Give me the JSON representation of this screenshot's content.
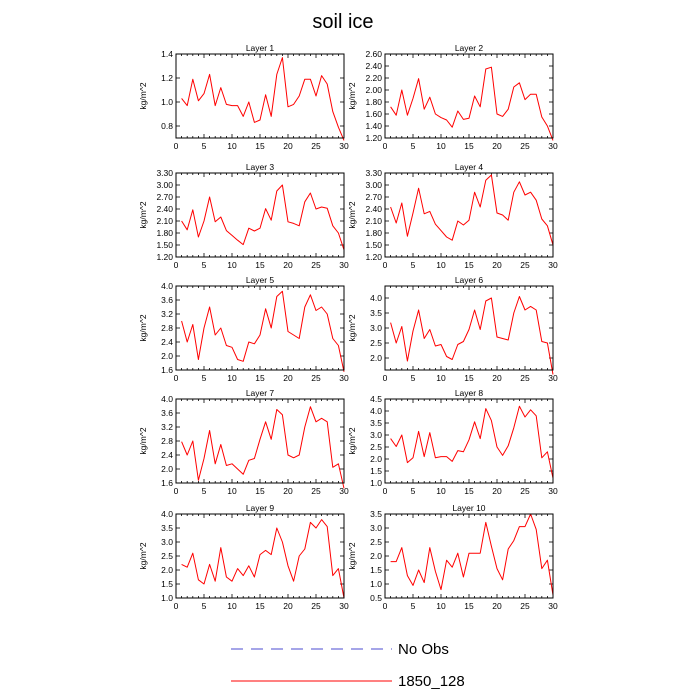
{
  "figure": {
    "title": "soil ice",
    "legend": [
      {
        "label": "No Obs",
        "color": "#4b4bd0",
        "style": "dashed"
      },
      {
        "label": "1850_128",
        "color": "#ff0000",
        "style": "solid"
      }
    ]
  },
  "chart_data": [
    {
      "type": "line",
      "title": "Layer 1",
      "ylabel": "kg/m^2",
      "xlim": [
        0,
        30
      ],
      "ylim": [
        0.7,
        1.4
      ],
      "xticks": [
        0,
        5,
        10,
        15,
        20,
        25,
        30
      ],
      "yticks": [
        0.8,
        1.0,
        1.2,
        1.4
      ],
      "ytick_labels": [
        "0.8",
        "1.0",
        "1.2",
        "1.4"
      ],
      "series": [
        {
          "color": "#ff0000",
          "x": [
            1,
            2,
            3,
            4,
            5,
            6,
            7,
            8,
            9,
            10,
            11,
            12,
            13,
            14,
            15,
            16,
            17,
            18,
            19,
            20,
            21,
            22,
            23,
            24,
            25,
            26,
            27,
            28,
            29,
            30
          ],
          "y": [
            1.03,
            0.97,
            1.19,
            1.01,
            1.07,
            1.23,
            0.97,
            1.12,
            0.98,
            0.97,
            0.97,
            0.88,
            1.0,
            0.83,
            0.85,
            1.06,
            0.88,
            1.23,
            1.37,
            0.96,
            0.98,
            1.05,
            1.19,
            1.19,
            1.05,
            1.22,
            1.15,
            0.92,
            0.79,
            0.68
          ]
        }
      ]
    },
    {
      "type": "line",
      "title": "Layer 2",
      "ylabel": "kg/m^2",
      "xlim": [
        0,
        30
      ],
      "ylim": [
        1.2,
        2.6
      ],
      "xticks": [
        0,
        5,
        10,
        15,
        20,
        25,
        30
      ],
      "yticks": [
        1.2,
        1.4,
        1.6,
        1.8,
        2.0,
        2.2,
        2.4,
        2.6
      ],
      "ytick_labels": [
        "1.20",
        "1.40",
        "1.60",
        "1.80",
        "2.00",
        "2.20",
        "2.40",
        "2.60"
      ],
      "series": [
        {
          "color": "#ff0000",
          "x": [
            1,
            2,
            3,
            4,
            5,
            6,
            7,
            8,
            9,
            10,
            11,
            12,
            13,
            14,
            15,
            16,
            17,
            18,
            19,
            20,
            21,
            22,
            23,
            24,
            25,
            26,
            27,
            28,
            29,
            30
          ],
          "y": [
            1.72,
            1.58,
            2.0,
            1.58,
            1.86,
            2.19,
            1.68,
            1.88,
            1.6,
            1.54,
            1.5,
            1.38,
            1.65,
            1.51,
            1.53,
            1.9,
            1.72,
            2.35,
            2.38,
            1.6,
            1.56,
            1.68,
            2.05,
            2.12,
            1.84,
            1.93,
            1.93,
            1.55,
            1.4,
            1.16
          ]
        }
      ]
    },
    {
      "type": "line",
      "title": "Layer 3",
      "ylabel": "kg/m^2",
      "xlim": [
        0,
        30
      ],
      "ylim": [
        1.2,
        3.3
      ],
      "xticks": [
        0,
        5,
        10,
        15,
        20,
        25,
        30
      ],
      "yticks": [
        1.2,
        1.5,
        1.8,
        2.1,
        2.4,
        2.7,
        3.0,
        3.3
      ],
      "ytick_labels": [
        "1.20",
        "1.50",
        "1.80",
        "2.10",
        "2.40",
        "2.70",
        "3.00",
        "3.30"
      ],
      "series": [
        {
          "color": "#ff0000",
          "x": [
            1,
            2,
            3,
            4,
            5,
            6,
            7,
            8,
            9,
            10,
            11,
            12,
            13,
            14,
            15,
            16,
            17,
            18,
            19,
            20,
            21,
            22,
            23,
            24,
            25,
            26,
            27,
            28,
            29,
            30
          ],
          "y": [
            2.1,
            1.88,
            2.38,
            1.7,
            2.1,
            2.7,
            2.08,
            2.2,
            1.86,
            1.74,
            1.62,
            1.51,
            1.92,
            1.85,
            1.92,
            2.41,
            2.12,
            2.85,
            3.0,
            2.08,
            2.04,
            1.98,
            2.58,
            2.8,
            2.4,
            2.45,
            2.42,
            1.98,
            1.8,
            1.38
          ]
        }
      ]
    },
    {
      "type": "line",
      "title": "Layer 4",
      "ylabel": "kg/m^2",
      "xlim": [
        0,
        30
      ],
      "ylim": [
        1.2,
        3.3
      ],
      "xticks": [
        0,
        5,
        10,
        15,
        20,
        25,
        30
      ],
      "yticks": [
        1.2,
        1.5,
        1.8,
        2.1,
        2.4,
        2.7,
        3.0,
        3.3
      ],
      "ytick_labels": [
        "1.20",
        "1.50",
        "1.80",
        "2.10",
        "2.40",
        "2.70",
        "3.00",
        "3.30"
      ],
      "series": [
        {
          "color": "#ff0000",
          "x": [
            1,
            2,
            3,
            4,
            5,
            6,
            7,
            8,
            9,
            10,
            11,
            12,
            13,
            14,
            15,
            16,
            17,
            18,
            19,
            20,
            21,
            22,
            23,
            24,
            25,
            26,
            27,
            28,
            29,
            30
          ],
          "y": [
            2.45,
            2.05,
            2.55,
            1.72,
            2.3,
            2.92,
            2.28,
            2.34,
            2.02,
            1.86,
            1.7,
            1.62,
            2.1,
            2.0,
            2.12,
            2.82,
            2.45,
            3.12,
            3.25,
            2.3,
            2.25,
            2.12,
            2.82,
            3.08,
            2.75,
            2.82,
            2.62,
            2.15,
            1.98,
            1.5
          ]
        }
      ]
    },
    {
      "type": "line",
      "title": "Layer 5",
      "ylabel": "kg/m^2",
      "xlim": [
        0,
        30
      ],
      "ylim": [
        1.6,
        4.0
      ],
      "xticks": [
        0,
        5,
        10,
        15,
        20,
        25,
        30
      ],
      "yticks": [
        1.6,
        2.0,
        2.4,
        2.8,
        3.2,
        3.6,
        4.0
      ],
      "ytick_labels": [
        "1.6",
        "2.0",
        "2.4",
        "2.8",
        "3.2",
        "3.6",
        "4.0"
      ],
      "series": [
        {
          "color": "#ff0000",
          "x": [
            1,
            2,
            3,
            4,
            5,
            6,
            7,
            8,
            9,
            10,
            11,
            12,
            13,
            14,
            15,
            16,
            17,
            18,
            19,
            20,
            21,
            22,
            23,
            24,
            25,
            26,
            27,
            28,
            29,
            30
          ],
          "y": [
            3.0,
            2.4,
            2.9,
            1.9,
            2.8,
            3.4,
            2.6,
            2.8,
            2.3,
            2.25,
            1.9,
            1.85,
            2.4,
            2.35,
            2.6,
            3.35,
            2.8,
            3.7,
            3.85,
            2.7,
            2.6,
            2.5,
            3.4,
            3.75,
            3.3,
            3.4,
            3.2,
            2.5,
            2.3,
            1.55
          ]
        }
      ]
    },
    {
      "type": "line",
      "title": "Layer 6",
      "ylabel": "kg/m^2",
      "xlim": [
        0,
        30
      ],
      "ylim": [
        1.6,
        4.4
      ],
      "xticks": [
        0,
        5,
        10,
        15,
        20,
        25,
        30
      ],
      "yticks": [
        2.0,
        2.5,
        3.0,
        3.5,
        4.0
      ],
      "ytick_labels": [
        "2.0",
        "2.5",
        "3.0",
        "3.5",
        "4.0"
      ],
      "series": [
        {
          "color": "#ff0000",
          "x": [
            1,
            2,
            3,
            4,
            5,
            6,
            7,
            8,
            9,
            10,
            11,
            12,
            13,
            14,
            15,
            16,
            17,
            18,
            19,
            20,
            21,
            22,
            23,
            24,
            25,
            26,
            27,
            28,
            29,
            30
          ],
          "y": [
            3.18,
            2.5,
            3.05,
            1.9,
            2.9,
            3.6,
            2.65,
            2.95,
            2.4,
            2.45,
            2.05,
            1.95,
            2.45,
            2.55,
            2.95,
            3.6,
            2.95,
            3.9,
            4.0,
            2.7,
            2.65,
            2.6,
            3.5,
            4.05,
            3.6,
            3.72,
            3.6,
            2.55,
            2.5,
            1.45
          ]
        }
      ]
    },
    {
      "type": "line",
      "title": "Layer 7",
      "ylabel": "kg/m^2",
      "xlim": [
        0,
        30
      ],
      "ylim": [
        1.6,
        4.0
      ],
      "xticks": [
        0,
        5,
        10,
        15,
        20,
        25,
        30
      ],
      "yticks": [
        1.6,
        2.0,
        2.4,
        2.8,
        3.2,
        3.6,
        4.0
      ],
      "ytick_labels": [
        "1.6",
        "2.0",
        "2.4",
        "2.8",
        "3.2",
        "3.6",
        "4.0"
      ],
      "series": [
        {
          "color": "#ff0000",
          "x": [
            1,
            2,
            3,
            4,
            5,
            6,
            7,
            8,
            9,
            10,
            11,
            12,
            13,
            14,
            15,
            16,
            17,
            18,
            19,
            20,
            21,
            22,
            23,
            24,
            25,
            26,
            27,
            28,
            29,
            30
          ],
          "y": [
            2.78,
            2.4,
            2.8,
            1.68,
            2.3,
            3.1,
            2.15,
            2.7,
            2.1,
            2.15,
            2.0,
            1.85,
            2.25,
            2.3,
            2.85,
            3.35,
            2.85,
            3.7,
            3.55,
            2.4,
            2.32,
            2.4,
            3.2,
            3.78,
            3.35,
            3.45,
            3.35,
            2.05,
            2.15,
            1.45
          ]
        }
      ]
    },
    {
      "type": "line",
      "title": "Layer 8",
      "ylabel": "kg/m^2",
      "xlim": [
        0,
        30
      ],
      "ylim": [
        1.0,
        4.5
      ],
      "xticks": [
        0,
        5,
        10,
        15,
        20,
        25,
        30
      ],
      "yticks": [
        1.0,
        1.5,
        2.0,
        2.5,
        3.0,
        3.5,
        4.0,
        4.5
      ],
      "ytick_labels": [
        "1.0",
        "1.5",
        "2.0",
        "2.5",
        "3.0",
        "3.5",
        "4.0",
        "4.5"
      ],
      "series": [
        {
          "color": "#ff0000",
          "x": [
            1,
            2,
            3,
            4,
            5,
            6,
            7,
            8,
            9,
            10,
            11,
            12,
            13,
            14,
            15,
            16,
            17,
            18,
            19,
            20,
            21,
            22,
            23,
            24,
            25,
            26,
            27,
            28,
            29,
            30
          ],
          "y": [
            2.85,
            2.52,
            3.0,
            1.85,
            2.05,
            3.15,
            2.1,
            3.1,
            2.05,
            2.1,
            2.1,
            1.9,
            2.35,
            2.3,
            2.8,
            3.55,
            2.85,
            4.1,
            3.6,
            2.5,
            2.15,
            2.55,
            3.3,
            4.2,
            3.75,
            4.05,
            3.8,
            2.05,
            2.3,
            1.2
          ]
        }
      ]
    },
    {
      "type": "line",
      "title": "Layer 9",
      "ylabel": "kg/m^2",
      "xlim": [
        0,
        30
      ],
      "ylim": [
        1.0,
        4.0
      ],
      "xticks": [
        0,
        5,
        10,
        15,
        20,
        25,
        30
      ],
      "yticks": [
        1.0,
        1.5,
        2.0,
        2.5,
        3.0,
        3.5,
        4.0
      ],
      "ytick_labels": [
        "1.0",
        "1.5",
        "2.0",
        "2.5",
        "3.0",
        "3.5",
        "4.0"
      ],
      "series": [
        {
          "color": "#ff0000",
          "x": [
            1,
            2,
            3,
            4,
            5,
            6,
            7,
            8,
            9,
            10,
            11,
            12,
            13,
            14,
            15,
            16,
            17,
            18,
            19,
            20,
            21,
            22,
            23,
            24,
            25,
            26,
            27,
            28,
            29,
            30
          ],
          "y": [
            2.2,
            2.1,
            2.6,
            1.65,
            1.5,
            2.2,
            1.6,
            2.8,
            1.75,
            1.6,
            2.05,
            1.8,
            2.15,
            1.75,
            2.55,
            2.7,
            2.55,
            3.5,
            3.0,
            2.15,
            1.6,
            2.5,
            2.75,
            3.7,
            3.5,
            3.8,
            3.55,
            1.8,
            2.05,
            1.0
          ]
        }
      ]
    },
    {
      "type": "line",
      "title": "Layer 10",
      "ylabel": "kg/m^2",
      "xlim": [
        0,
        30
      ],
      "ylim": [
        0.5,
        3.5
      ],
      "xticks": [
        0,
        5,
        10,
        15,
        20,
        25,
        30
      ],
      "yticks": [
        0.5,
        1.0,
        1.5,
        2.0,
        2.5,
        3.0,
        3.5
      ],
      "ytick_labels": [
        "0.5",
        "1.0",
        "1.5",
        "2.0",
        "2.5",
        "3.0",
        "3.5"
      ],
      "series": [
        {
          "color": "#ff0000",
          "x": [
            1,
            2,
            3,
            4,
            5,
            6,
            7,
            8,
            9,
            10,
            11,
            12,
            13,
            14,
            15,
            16,
            17,
            18,
            19,
            20,
            21,
            22,
            23,
            24,
            25,
            26,
            27,
            28,
            29,
            30
          ],
          "y": [
            1.8,
            1.8,
            2.3,
            1.3,
            0.95,
            1.5,
            1.05,
            2.3,
            1.45,
            0.8,
            1.85,
            1.6,
            2.1,
            1.25,
            2.1,
            2.1,
            2.1,
            3.2,
            2.35,
            1.55,
            1.15,
            2.25,
            2.55,
            3.05,
            3.05,
            3.5,
            2.95,
            1.55,
            1.85,
            0.6
          ]
        }
      ]
    }
  ]
}
